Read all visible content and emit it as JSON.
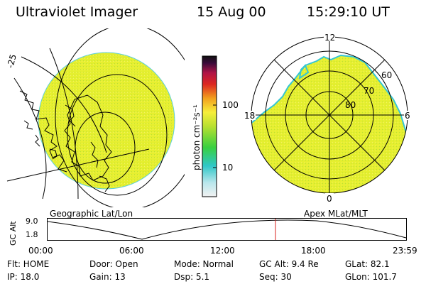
{
  "header": {
    "title": "Ultraviolet Imager",
    "date": "15 Aug 00",
    "time": "15:29:10 UT"
  },
  "colorbar": {
    "unit": "photon cm⁻²s⁻¹",
    "tick_100": "100",
    "tick_10": "10"
  },
  "left_panel": {
    "caption": "Geographic Lat/Lon",
    "lat_label": "-25",
    "fill_color": "#e6ef2f"
  },
  "right_panel": {
    "caption": "Apex MLat/MLT",
    "mlt_top": "12",
    "mlt_left": "18",
    "mlt_right": "6",
    "mlt_bottom": "0",
    "lat_60": "60",
    "lat_70": "70",
    "lat_80": "80",
    "fill_color": "#e6ef2f",
    "edge_color": "#35c6d3"
  },
  "timeline": {
    "ylabel": "GC Alt",
    "y_top": "9.0",
    "y_bottom": "1.8",
    "ticks": [
      "00:00",
      "06:00",
      "12:00",
      "18:00",
      "23:59"
    ],
    "current_marker_color": "#d8221e"
  },
  "status": {
    "flt": "Flt: HOME",
    "door": "Door: Open",
    "mode": "Mode: Normal",
    "gcalt": "GC Alt: 9.4 Re",
    "glat": "GLat:  82.1",
    "ip": "IP: 18.0",
    "gain": "Gain: 13",
    "dsp": "Dsp:    5.1",
    "seq": "Seq: 30",
    "glon": "GLon: 101.7"
  }
}
